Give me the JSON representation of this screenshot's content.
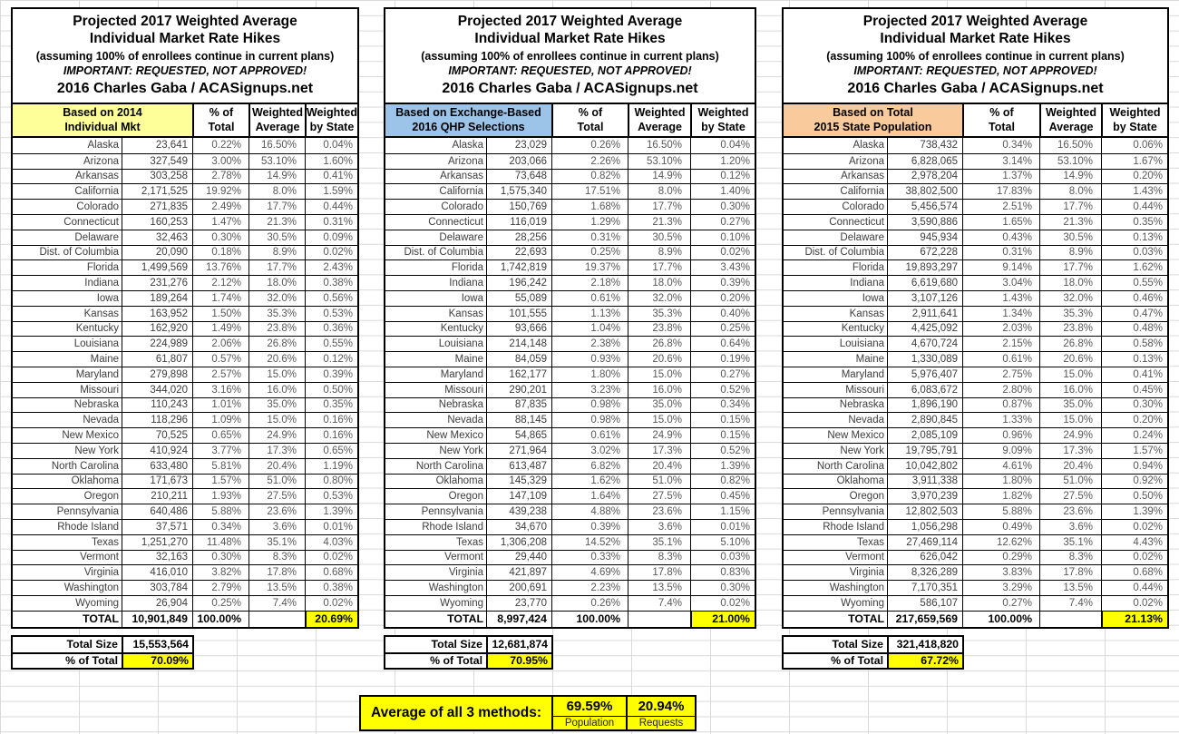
{
  "title": {
    "line1": "Projected 2017 Weighted Average",
    "line2": "Individual Market Rate Hikes",
    "line3": "(assuming 100% of enrollees continue in current plans)",
    "line4": "IMPORTANT: REQUESTED, NOT APPROVED!",
    "line5": "2016 Charles Gaba / ACASignups.net"
  },
  "columns": {
    "pct_line1": "% of",
    "pct_line2": "Total",
    "wavg_line1": "Weighted",
    "wavg_line2": "Average",
    "wstate_line1": "Weighted",
    "wstate_line2": "by State"
  },
  "footer_labels": {
    "total_size": "Total Size",
    "pct_of_total": "% of Total"
  },
  "colors": {
    "table1_header": "#FFFF99",
    "table2_header": "#9CC4E8",
    "table3_header": "#F9CB9C",
    "highlight": "#FFFF00"
  },
  "tables": [
    {
      "header_line1": "Based on 2014",
      "header_line2": "Individual Mkt",
      "header_color": "#FFFF99",
      "rows": [
        [
          "Alaska",
          "23,641",
          "0.22%",
          "16.50%",
          "0.04%"
        ],
        [
          "Arizona",
          "327,549",
          "3.00%",
          "53.10%",
          "1.60%"
        ],
        [
          "Arkansas",
          "303,258",
          "2.78%",
          "14.9%",
          "0.41%"
        ],
        [
          "California",
          "2,171,525",
          "19.92%",
          "8.0%",
          "1.59%"
        ],
        [
          "Colorado",
          "271,835",
          "2.49%",
          "17.7%",
          "0.44%"
        ],
        [
          "Connecticut",
          "160,253",
          "1.47%",
          "21.3%",
          "0.31%"
        ],
        [
          "Delaware",
          "32,463",
          "0.30%",
          "30.5%",
          "0.09%"
        ],
        [
          "Dist. of Columbia",
          "20,090",
          "0.18%",
          "8.9%",
          "0.02%"
        ],
        [
          "Florida",
          "1,499,569",
          "13.76%",
          "17.7%",
          "2.43%"
        ],
        [
          "Indiana",
          "231,276",
          "2.12%",
          "18.0%",
          "0.38%"
        ],
        [
          "Iowa",
          "189,264",
          "1.74%",
          "32.0%",
          "0.56%"
        ],
        [
          "Kansas",
          "163,952",
          "1.50%",
          "35.3%",
          "0.53%"
        ],
        [
          "Kentucky",
          "162,920",
          "1.49%",
          "23.8%",
          "0.36%"
        ],
        [
          "Louisiana",
          "224,989",
          "2.06%",
          "26.8%",
          "0.55%"
        ],
        [
          "Maine",
          "61,807",
          "0.57%",
          "20.6%",
          "0.12%"
        ],
        [
          "Maryland",
          "279,898",
          "2.57%",
          "15.0%",
          "0.39%"
        ],
        [
          "Missouri",
          "344,020",
          "3.16%",
          "16.0%",
          "0.50%"
        ],
        [
          "Nebraska",
          "110,243",
          "1.01%",
          "35.0%",
          "0.35%"
        ],
        [
          "Nevada",
          "118,296",
          "1.09%",
          "15.0%",
          "0.16%"
        ],
        [
          "New Mexico",
          "70,525",
          "0.65%",
          "24.9%",
          "0.16%"
        ],
        [
          "New York",
          "410,924",
          "3.77%",
          "17.3%",
          "0.65%"
        ],
        [
          "North Carolina",
          "633,480",
          "5.81%",
          "20.4%",
          "1.19%"
        ],
        [
          "Oklahoma",
          "171,673",
          "1.57%",
          "51.0%",
          "0.80%"
        ],
        [
          "Oregon",
          "210,211",
          "1.93%",
          "27.5%",
          "0.53%"
        ],
        [
          "Pennsylvania",
          "640,486",
          "5.88%",
          "23.6%",
          "1.39%"
        ],
        [
          "Rhode Island",
          "37,571",
          "0.34%",
          "3.6%",
          "0.01%"
        ],
        [
          "Texas",
          "1,251,270",
          "11.48%",
          "35.1%",
          "4.03%"
        ],
        [
          "Vermont",
          "32,163",
          "0.30%",
          "8.3%",
          "0.02%"
        ],
        [
          "Virginia",
          "416,010",
          "3.82%",
          "17.8%",
          "0.68%"
        ],
        [
          "Washington",
          "303,784",
          "2.79%",
          "13.5%",
          "0.38%"
        ],
        [
          "Wyoming",
          "26,904",
          "0.25%",
          "7.4%",
          "0.02%"
        ]
      ],
      "total_row": [
        "TOTAL",
        "10,901,849",
        "100.00%",
        "",
        "20.69%"
      ],
      "total_size": "15,553,564",
      "pct_of_total": "70.09%"
    },
    {
      "header_line1": "Based on Exchange-Based",
      "header_line2": "2016 QHP Selections",
      "header_color": "#9CC4E8",
      "rows": [
        [
          "Alaska",
          "23,029",
          "0.26%",
          "16.50%",
          "0.04%"
        ],
        [
          "Arizona",
          "203,066",
          "2.26%",
          "53.10%",
          "1.20%"
        ],
        [
          "Arkansas",
          "73,648",
          "0.82%",
          "14.9%",
          "0.12%"
        ],
        [
          "California",
          "1,575,340",
          "17.51%",
          "8.0%",
          "1.40%"
        ],
        [
          "Colorado",
          "150,769",
          "1.68%",
          "17.7%",
          "0.30%"
        ],
        [
          "Connecticut",
          "116,019",
          "1.29%",
          "21.3%",
          "0.27%"
        ],
        [
          "Delaware",
          "28,256",
          "0.31%",
          "30.5%",
          "0.10%"
        ],
        [
          "Dist. of Columbia",
          "22,693",
          "0.25%",
          "8.9%",
          "0.02%"
        ],
        [
          "Florida",
          "1,742,819",
          "19.37%",
          "17.7%",
          "3.43%"
        ],
        [
          "Indiana",
          "196,242",
          "2.18%",
          "18.0%",
          "0.39%"
        ],
        [
          "Iowa",
          "55,089",
          "0.61%",
          "32.0%",
          "0.20%"
        ],
        [
          "Kansas",
          "101,555",
          "1.13%",
          "35.3%",
          "0.40%"
        ],
        [
          "Kentucky",
          "93,666",
          "1.04%",
          "23.8%",
          "0.25%"
        ],
        [
          "Louisiana",
          "214,148",
          "2.38%",
          "26.8%",
          "0.64%"
        ],
        [
          "Maine",
          "84,059",
          "0.93%",
          "20.6%",
          "0.19%"
        ],
        [
          "Maryland",
          "162,177",
          "1.80%",
          "15.0%",
          "0.27%"
        ],
        [
          "Missouri",
          "290,201",
          "3.23%",
          "16.0%",
          "0.52%"
        ],
        [
          "Nebraska",
          "87,835",
          "0.98%",
          "35.0%",
          "0.34%"
        ],
        [
          "Nevada",
          "88,145",
          "0.98%",
          "15.0%",
          "0.15%"
        ],
        [
          "New Mexico",
          "54,865",
          "0.61%",
          "24.9%",
          "0.15%"
        ],
        [
          "New York",
          "271,964",
          "3.02%",
          "17.3%",
          "0.52%"
        ],
        [
          "North Carolina",
          "613,487",
          "6.82%",
          "20.4%",
          "1.39%"
        ],
        [
          "Oklahoma",
          "145,329",
          "1.62%",
          "51.0%",
          "0.82%"
        ],
        [
          "Oregon",
          "147,109",
          "1.64%",
          "27.5%",
          "0.45%"
        ],
        [
          "Pennsylvania",
          "439,238",
          "4.88%",
          "23.6%",
          "1.15%"
        ],
        [
          "Rhode Island",
          "34,670",
          "0.39%",
          "3.6%",
          "0.01%"
        ],
        [
          "Texas",
          "1,306,208",
          "14.52%",
          "35.1%",
          "5.10%"
        ],
        [
          "Vermont",
          "29,440",
          "0.33%",
          "8.3%",
          "0.03%"
        ],
        [
          "Virginia",
          "421,897",
          "4.69%",
          "17.8%",
          "0.83%"
        ],
        [
          "Washington",
          "200,691",
          "2.23%",
          "13.5%",
          "0.30%"
        ],
        [
          "Wyoming",
          "23,770",
          "0.26%",
          "7.4%",
          "0.02%"
        ]
      ],
      "total_row": [
        "TOTAL",
        "8,997,424",
        "100.00%",
        "",
        "21.00%"
      ],
      "total_size": "12,681,874",
      "pct_of_total": "70.95%"
    },
    {
      "header_line1": "Based on Total",
      "header_line2": "2015 State Population",
      "header_color": "#F9CB9C",
      "rows": [
        [
          "Alaska",
          "738,432",
          "0.34%",
          "16.50%",
          "0.06%"
        ],
        [
          "Arizona",
          "6,828,065",
          "3.14%",
          "53.10%",
          "1.67%"
        ],
        [
          "Arkansas",
          "2,978,204",
          "1.37%",
          "14.9%",
          "0.20%"
        ],
        [
          "California",
          "38,802,500",
          "17.83%",
          "8.0%",
          "1.43%"
        ],
        [
          "Colorado",
          "5,456,574",
          "2.51%",
          "17.7%",
          "0.44%"
        ],
        [
          "Connecticut",
          "3,590,886",
          "1.65%",
          "21.3%",
          "0.35%"
        ],
        [
          "Delaware",
          "945,934",
          "0.43%",
          "30.5%",
          "0.13%"
        ],
        [
          "Dist. of Columbia",
          "672,228",
          "0.31%",
          "8.9%",
          "0.03%"
        ],
        [
          "Florida",
          "19,893,297",
          "9.14%",
          "17.7%",
          "1.62%"
        ],
        [
          "Indiana",
          "6,619,680",
          "3.04%",
          "18.0%",
          "0.55%"
        ],
        [
          "Iowa",
          "3,107,126",
          "1.43%",
          "32.0%",
          "0.46%"
        ],
        [
          "Kansas",
          "2,911,641",
          "1.34%",
          "35.3%",
          "0.47%"
        ],
        [
          "Kentucky",
          "4,425,092",
          "2.03%",
          "23.8%",
          "0.48%"
        ],
        [
          "Louisiana",
          "4,670,724",
          "2.15%",
          "26.8%",
          "0.58%"
        ],
        [
          "Maine",
          "1,330,089",
          "0.61%",
          "20.6%",
          "0.13%"
        ],
        [
          "Maryland",
          "5,976,407",
          "2.75%",
          "15.0%",
          "0.41%"
        ],
        [
          "Missouri",
          "6,083,672",
          "2.80%",
          "16.0%",
          "0.45%"
        ],
        [
          "Nebraska",
          "1,896,190",
          "0.87%",
          "35.0%",
          "0.30%"
        ],
        [
          "Nevada",
          "2,890,845",
          "1.33%",
          "15.0%",
          "0.20%"
        ],
        [
          "New Mexico",
          "2,085,109",
          "0.96%",
          "24.9%",
          "0.24%"
        ],
        [
          "New York",
          "19,795,791",
          "9.09%",
          "17.3%",
          "1.57%"
        ],
        [
          "North Carolina",
          "10,042,802",
          "4.61%",
          "20.4%",
          "0.94%"
        ],
        [
          "Oklahoma",
          "3,911,338",
          "1.80%",
          "51.0%",
          "0.92%"
        ],
        [
          "Oregon",
          "3,970,239",
          "1.82%",
          "27.5%",
          "0.50%"
        ],
        [
          "Pennsylvania",
          "12,802,503",
          "5.88%",
          "23.6%",
          "1.39%"
        ],
        [
          "Rhode Island",
          "1,056,298",
          "0.49%",
          "3.6%",
          "0.02%"
        ],
        [
          "Texas",
          "27,469,114",
          "12.62%",
          "35.1%",
          "4.43%"
        ],
        [
          "Vermont",
          "626,042",
          "0.29%",
          "8.3%",
          "0.02%"
        ],
        [
          "Virginia",
          "8,326,289",
          "3.83%",
          "17.8%",
          "0.68%"
        ],
        [
          "Washington",
          "7,170,351",
          "3.29%",
          "13.5%",
          "0.44%"
        ],
        [
          "Wyoming",
          "586,107",
          "0.27%",
          "7.4%",
          "0.02%"
        ]
      ],
      "total_row": [
        "TOTAL",
        "217,659,569",
        "100.00%",
        "",
        "21.13%"
      ],
      "total_size": "321,418,820",
      "pct_of_total": "67.72%"
    }
  ],
  "average": {
    "label": "Average of all 3 methods:",
    "population_value": "69.59%",
    "population_label": "Population",
    "requests_value": "20.94%",
    "requests_label": "Requests"
  }
}
